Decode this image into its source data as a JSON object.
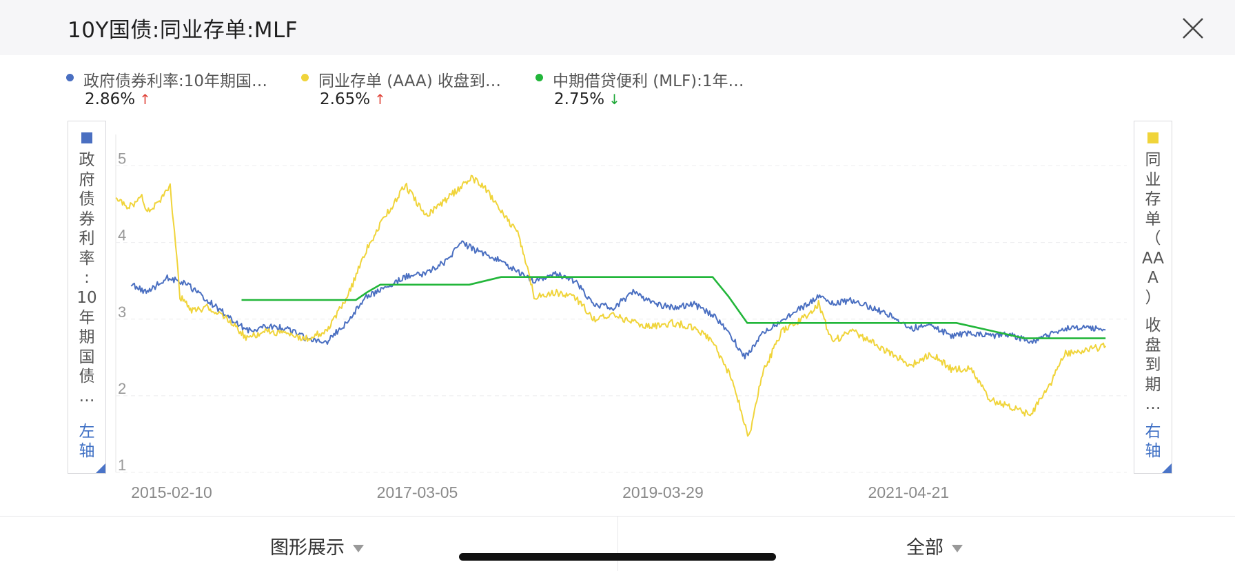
{
  "header": {
    "title": "10Y国债:同业存单:MLF",
    "close_icon": "close-icon"
  },
  "legend": [
    {
      "name": "政府债券利率:10年期国…",
      "value": "2.86%",
      "arrow": "↑",
      "arrow_color": "#e0443a",
      "color": "#4a6fc1"
    },
    {
      "name": "同业存单 (AAA) 收盘到…",
      "value": "2.65%",
      "arrow": "↑",
      "arrow_color": "#e0443a",
      "color": "#f0d43a"
    },
    {
      "name": "中期借贷便利 (MLF):1年…",
      "value": "2.75%",
      "arrow": "↓",
      "arrow_color": "#1fa838",
      "color": "#22b63a"
    }
  ],
  "left_axis": {
    "color": "#4a6fc1",
    "label_top": "政府债券利率:",
    "label_bottom": "10年期国债…",
    "side": "左轴"
  },
  "right_axis": {
    "color": "#f0d43a",
    "label_top": "同业存单（AAA）",
    "label_bottom": "收盘到期…",
    "side": "右轴"
  },
  "footer": {
    "chart_mode": "图形展示",
    "range": "全部"
  },
  "chart_data": {
    "type": "line",
    "xlim": [
      "2014-12-25",
      "2023-06-20"
    ],
    "x_ticks": [
      "2015-02-10",
      "2017-03-05",
      "2019-03-29",
      "2021-04-21"
    ],
    "ylim": [
      1,
      5.5
    ],
    "y_ticks": [
      1,
      2,
      3,
      4,
      5
    ],
    "grid": true,
    "series": [
      {
        "name": "政府债券利率:10年期国…",
        "color": "#4a6fc1",
        "points": [
          [
            "2015-02-10",
            3.45
          ],
          [
            "2015-04-01",
            3.35
          ],
          [
            "2015-06-01",
            3.55
          ],
          [
            "2015-08-01",
            3.45
          ],
          [
            "2015-10-01",
            3.25
          ],
          [
            "2015-12-01",
            3.05
          ],
          [
            "2016-02-01",
            2.85
          ],
          [
            "2016-04-01",
            2.9
          ],
          [
            "2016-06-01",
            2.88
          ],
          [
            "2016-08-01",
            2.75
          ],
          [
            "2016-10-01",
            2.7
          ],
          [
            "2016-12-01",
            2.95
          ],
          [
            "2017-02-01",
            3.3
          ],
          [
            "2017-04-01",
            3.4
          ],
          [
            "2017-06-01",
            3.55
          ],
          [
            "2017-08-01",
            3.6
          ],
          [
            "2017-10-01",
            3.75
          ],
          [
            "2017-11-22",
            4.0
          ],
          [
            "2018-01-01",
            3.9
          ],
          [
            "2018-03-01",
            3.8
          ],
          [
            "2018-05-01",
            3.65
          ],
          [
            "2018-07-01",
            3.5
          ],
          [
            "2018-09-01",
            3.6
          ],
          [
            "2018-11-01",
            3.5
          ],
          [
            "2019-01-01",
            3.2
          ],
          [
            "2019-03-01",
            3.15
          ],
          [
            "2019-05-01",
            3.35
          ],
          [
            "2019-07-01",
            3.2
          ],
          [
            "2019-09-01",
            3.15
          ],
          [
            "2019-11-01",
            3.2
          ],
          [
            "2020-01-01",
            3.05
          ],
          [
            "2020-02-15",
            2.85
          ],
          [
            "2020-04-08",
            2.5
          ],
          [
            "2020-06-01",
            2.8
          ],
          [
            "2020-08-01",
            3.0
          ],
          [
            "2020-10-01",
            3.15
          ],
          [
            "2020-11-20",
            3.3
          ],
          [
            "2021-01-01",
            3.2
          ],
          [
            "2021-03-01",
            3.25
          ],
          [
            "2021-05-01",
            3.15
          ],
          [
            "2021-07-01",
            3.05
          ],
          [
            "2021-09-01",
            2.88
          ],
          [
            "2021-11-01",
            2.92
          ],
          [
            "2022-01-01",
            2.78
          ],
          [
            "2022-03-01",
            2.82
          ],
          [
            "2022-05-01",
            2.78
          ],
          [
            "2022-07-01",
            2.8
          ],
          [
            "2022-09-01",
            2.7
          ],
          [
            "2022-11-01",
            2.8
          ],
          [
            "2023-01-01",
            2.9
          ],
          [
            "2023-03-01",
            2.88
          ],
          [
            "2023-04-20",
            2.86
          ]
        ]
      },
      {
        "name": "同业存单 (AAA) 收盘到…",
        "color": "#f0d43a",
        "points": [
          [
            "2014-12-25",
            4.6
          ],
          [
            "2015-02-01",
            4.45
          ],
          [
            "2015-03-15",
            4.6
          ],
          [
            "2015-04-01",
            4.4
          ],
          [
            "2015-05-01",
            4.5
          ],
          [
            "2015-06-10",
            4.75
          ],
          [
            "2015-07-10",
            3.3
          ],
          [
            "2015-08-15",
            3.1
          ],
          [
            "2015-10-01",
            3.15
          ],
          [
            "2015-12-01",
            3.0
          ],
          [
            "2016-02-01",
            2.75
          ],
          [
            "2016-04-01",
            2.85
          ],
          [
            "2016-06-01",
            2.8
          ],
          [
            "2016-08-01",
            2.75
          ],
          [
            "2016-10-01",
            2.85
          ],
          [
            "2016-12-01",
            3.25
          ],
          [
            "2017-02-01",
            3.9
          ],
          [
            "2017-04-01",
            4.35
          ],
          [
            "2017-06-01",
            4.75
          ],
          [
            "2017-08-01",
            4.35
          ],
          [
            "2017-10-01",
            4.55
          ],
          [
            "2017-12-20",
            4.85
          ],
          [
            "2018-02-01",
            4.7
          ],
          [
            "2018-04-01",
            4.35
          ],
          [
            "2018-05-15",
            4.1
          ],
          [
            "2018-07-01",
            3.3
          ],
          [
            "2018-09-01",
            3.35
          ],
          [
            "2018-11-01",
            3.3
          ],
          [
            "2019-01-01",
            3.0
          ],
          [
            "2019-03-01",
            3.05
          ],
          [
            "2019-05-01",
            2.95
          ],
          [
            "2019-07-01",
            2.9
          ],
          [
            "2019-09-01",
            2.95
          ],
          [
            "2019-11-01",
            2.9
          ],
          [
            "2020-01-01",
            2.7
          ],
          [
            "2020-03-01",
            2.2
          ],
          [
            "2020-04-20",
            1.45
          ],
          [
            "2020-06-01",
            2.3
          ],
          [
            "2020-08-01",
            2.85
          ],
          [
            "2020-10-01",
            3.0
          ],
          [
            "2020-11-20",
            3.2
          ],
          [
            "2021-01-01",
            2.7
          ],
          [
            "2021-03-01",
            2.85
          ],
          [
            "2021-05-01",
            2.7
          ],
          [
            "2021-07-01",
            2.55
          ],
          [
            "2021-09-01",
            2.4
          ],
          [
            "2021-11-01",
            2.55
          ],
          [
            "2022-01-01",
            2.35
          ],
          [
            "2022-03-01",
            2.35
          ],
          [
            "2022-05-01",
            1.95
          ],
          [
            "2022-07-01",
            1.85
          ],
          [
            "2022-09-01",
            1.75
          ],
          [
            "2022-11-01",
            2.15
          ],
          [
            "2022-12-15",
            2.55
          ],
          [
            "2023-02-01",
            2.58
          ],
          [
            "2023-04-20",
            2.65
          ]
        ]
      },
      {
        "name": "中期借贷便利 (MLF):1年…",
        "color": "#22b63a",
        "points": [
          [
            "2016-01-15",
            3.25
          ],
          [
            "2016-12-31",
            3.25
          ],
          [
            "2017-02-03",
            3.35
          ],
          [
            "2017-03-16",
            3.45
          ],
          [
            "2017-12-14",
            3.45
          ],
          [
            "2018-03-22",
            3.55
          ],
          [
            "2018-07-01",
            3.55
          ],
          [
            "2019-12-31",
            3.55
          ],
          [
            "2020-02-17",
            3.3
          ],
          [
            "2020-04-15",
            2.95
          ],
          [
            "2022-01-17",
            2.95
          ],
          [
            "2022-08-15",
            2.75
          ],
          [
            "2023-04-20",
            2.75
          ]
        ]
      }
    ]
  }
}
